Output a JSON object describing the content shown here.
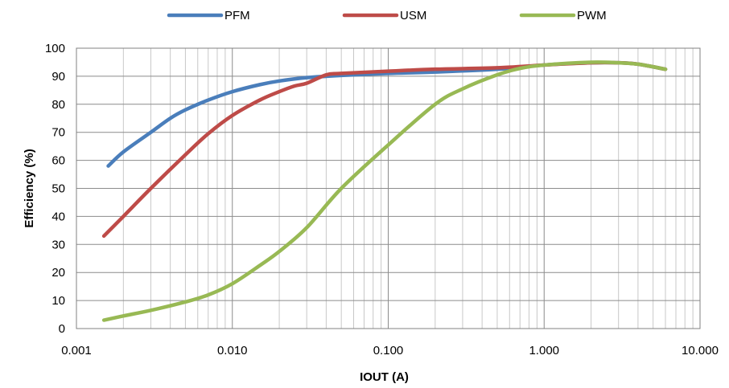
{
  "chart_data": {
    "type": "line",
    "title": "",
    "xlabel": "IOUT (A)",
    "ylabel": "Efficiency (%)",
    "x_scale": "log",
    "xlim": [
      0.001,
      10
    ],
    "ylim": [
      0,
      100
    ],
    "x_ticks": [
      "0.001",
      "0.010",
      "0.100",
      "1.000",
      "10.000"
    ],
    "y_ticks": [
      "0",
      "10",
      "20",
      "30",
      "40",
      "50",
      "60",
      "70",
      "80",
      "90",
      "100"
    ],
    "grid": true,
    "legend_position": "top",
    "series": [
      {
        "name": "PFM",
        "color": "#4a7ebb",
        "x": [
          0.0016,
          0.002,
          0.003,
          0.004,
          0.005,
          0.007,
          0.01,
          0.015,
          0.02,
          0.03,
          0.05,
          0.1,
          0.2,
          0.5,
          1.0,
          2.0,
          3.0,
          4.0,
          6.0
        ],
        "y": [
          58,
          63,
          70,
          75,
          78,
          81.5,
          84.5,
          87,
          88.3,
          89.5,
          90.3,
          91,
          91.5,
          92.5,
          94,
          94.8,
          94.8,
          94.3,
          92.5
        ]
      },
      {
        "name": "USM",
        "color": "#be4b48",
        "x": [
          0.0015,
          0.002,
          0.003,
          0.005,
          0.007,
          0.01,
          0.015,
          0.02,
          0.025,
          0.03,
          0.04,
          0.05,
          0.1,
          0.2,
          0.5,
          1.0,
          2.0,
          3.0,
          4.0,
          6.0
        ],
        "y": [
          33,
          40,
          50,
          62,
          69.5,
          76,
          81.5,
          84.5,
          86.5,
          87.5,
          90.5,
          91,
          91.8,
          92.5,
          93,
          94,
          94.8,
          94.8,
          94.3,
          92.5
        ]
      },
      {
        "name": "PWM",
        "color": "#98b954",
        "x": [
          0.0015,
          0.002,
          0.003,
          0.005,
          0.007,
          0.01,
          0.015,
          0.02,
          0.03,
          0.05,
          0.1,
          0.2,
          0.3,
          0.5,
          0.7,
          1.0,
          2.0,
          3.0,
          4.0,
          6.0
        ],
        "y": [
          3,
          4.5,
          6.5,
          9.5,
          12,
          16,
          22.5,
          27.5,
          36,
          50,
          65.5,
          80,
          85.5,
          90.5,
          92.8,
          94,
          95,
          94.8,
          94.3,
          92.5
        ]
      }
    ]
  }
}
